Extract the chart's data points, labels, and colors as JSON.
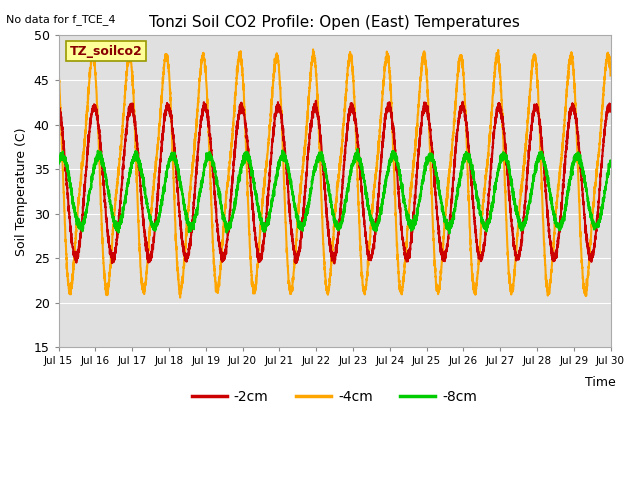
{
  "title": "Tonzi Soil CO2 Profile: Open (East) Temperatures",
  "no_data_text": "No data for f_TCE_4",
  "ylabel": "Soil Temperature (C)",
  "xlabel": "Time",
  "ylim": [
    15,
    50
  ],
  "background_color": "#e0e0e0",
  "legend_label_text": "TZ_soilco2",
  "x_tick_labels": [
    "Jul 15",
    "Jul 16",
    "Jul 17",
    "Jul 18",
    "Jul 19",
    "Jul 20",
    "Jul 21",
    "Jul 22",
    "Jul 23",
    "Jul 24",
    "Jul 25",
    "Jul 26",
    "Jul 27",
    "Jul 28",
    "Jul 29",
    "Jul 30"
  ],
  "series": {
    "m4cm": {
      "label": "-4cm",
      "color": "#ffa500",
      "mean": 34.5,
      "amplitude": 15.0,
      "phase": 0.62,
      "linewidth": 1.5
    },
    "m2cm": {
      "label": "-2cm",
      "color": "#cc0000",
      "mean": 33.5,
      "amplitude": 8.5,
      "phase": 0.72,
      "linewidth": 1.5
    },
    "m8cm": {
      "label": "-8cm",
      "color": "#00cc00",
      "mean": 32.5,
      "amplitude": 4.0,
      "phase": 0.85,
      "linewidth": 1.5
    }
  },
  "yticks": [
    15,
    20,
    25,
    30,
    35,
    40,
    45,
    50
  ],
  "grid_color": "#ffffff",
  "spine_color": "#aaaaaa"
}
